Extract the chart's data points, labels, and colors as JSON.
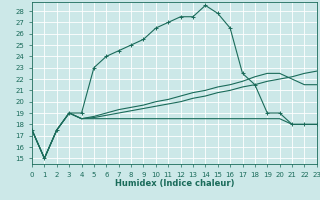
{
  "xlabel": "Humidex (Indice chaleur)",
  "bg_color": "#cce8e8",
  "grid_color": "#b0d4d4",
  "line_color": "#1a6b5a",
  "xlim": [
    0,
    23
  ],
  "ylim": [
    14.5,
    28.8
  ],
  "ytick_vals": [
    15,
    16,
    17,
    18,
    19,
    20,
    21,
    22,
    23,
    24,
    25,
    26,
    27,
    28
  ],
  "xtick_vals": [
    0,
    1,
    2,
    3,
    4,
    5,
    6,
    7,
    8,
    9,
    10,
    11,
    12,
    13,
    14,
    15,
    16,
    17,
    18,
    19,
    20,
    21,
    22,
    23
  ],
  "curve1_x": [
    0,
    1,
    2,
    3,
    4,
    5,
    6,
    7,
    8,
    9,
    10,
    11,
    12,
    13,
    14,
    15,
    16,
    17,
    18,
    19,
    20,
    21,
    22,
    23
  ],
  "curve1_y": [
    17.5,
    15.0,
    17.5,
    19.0,
    19.0,
    23.0,
    24.0,
    24.5,
    25.0,
    25.5,
    26.5,
    27.0,
    27.5,
    27.5,
    28.5,
    27.8,
    26.5,
    22.5,
    21.5,
    19.0,
    19.0,
    18.0,
    18.0,
    18.0
  ],
  "curve2_x": [
    0,
    1,
    2,
    3,
    4,
    5,
    6,
    7,
    8,
    9,
    10,
    11,
    12,
    13,
    14,
    15,
    16,
    17,
    18,
    19,
    20,
    21,
    22,
    23
  ],
  "curve2_y": [
    17.5,
    15.0,
    17.5,
    19.0,
    18.5,
    18.5,
    18.5,
    18.5,
    18.5,
    18.5,
    18.5,
    18.5,
    18.5,
    18.5,
    18.5,
    18.5,
    18.5,
    18.5,
    18.5,
    18.5,
    18.5,
    18.0,
    18.0,
    18.0
  ],
  "curve3_x": [
    0,
    1,
    2,
    3,
    4,
    5,
    6,
    7,
    8,
    9,
    10,
    11,
    12,
    13,
    14,
    15,
    16,
    17,
    18,
    19,
    20,
    21,
    22,
    23
  ],
  "curve3_y": [
    17.5,
    15.0,
    17.5,
    19.0,
    18.5,
    18.6,
    18.8,
    19.0,
    19.2,
    19.4,
    19.6,
    19.8,
    20.0,
    20.3,
    20.5,
    20.8,
    21.0,
    21.3,
    21.5,
    21.8,
    22.0,
    22.2,
    22.5,
    22.7
  ],
  "curve4_x": [
    0,
    1,
    2,
    3,
    4,
    5,
    6,
    7,
    8,
    9,
    10,
    11,
    12,
    13,
    14,
    15,
    16,
    17,
    18,
    19,
    20,
    21,
    22,
    23
  ],
  "curve4_y": [
    17.5,
    15.0,
    17.5,
    19.0,
    18.5,
    18.7,
    19.0,
    19.3,
    19.5,
    19.7,
    20.0,
    20.2,
    20.5,
    20.8,
    21.0,
    21.3,
    21.5,
    21.8,
    22.2,
    22.5,
    22.5,
    22.0,
    21.5,
    21.5
  ]
}
